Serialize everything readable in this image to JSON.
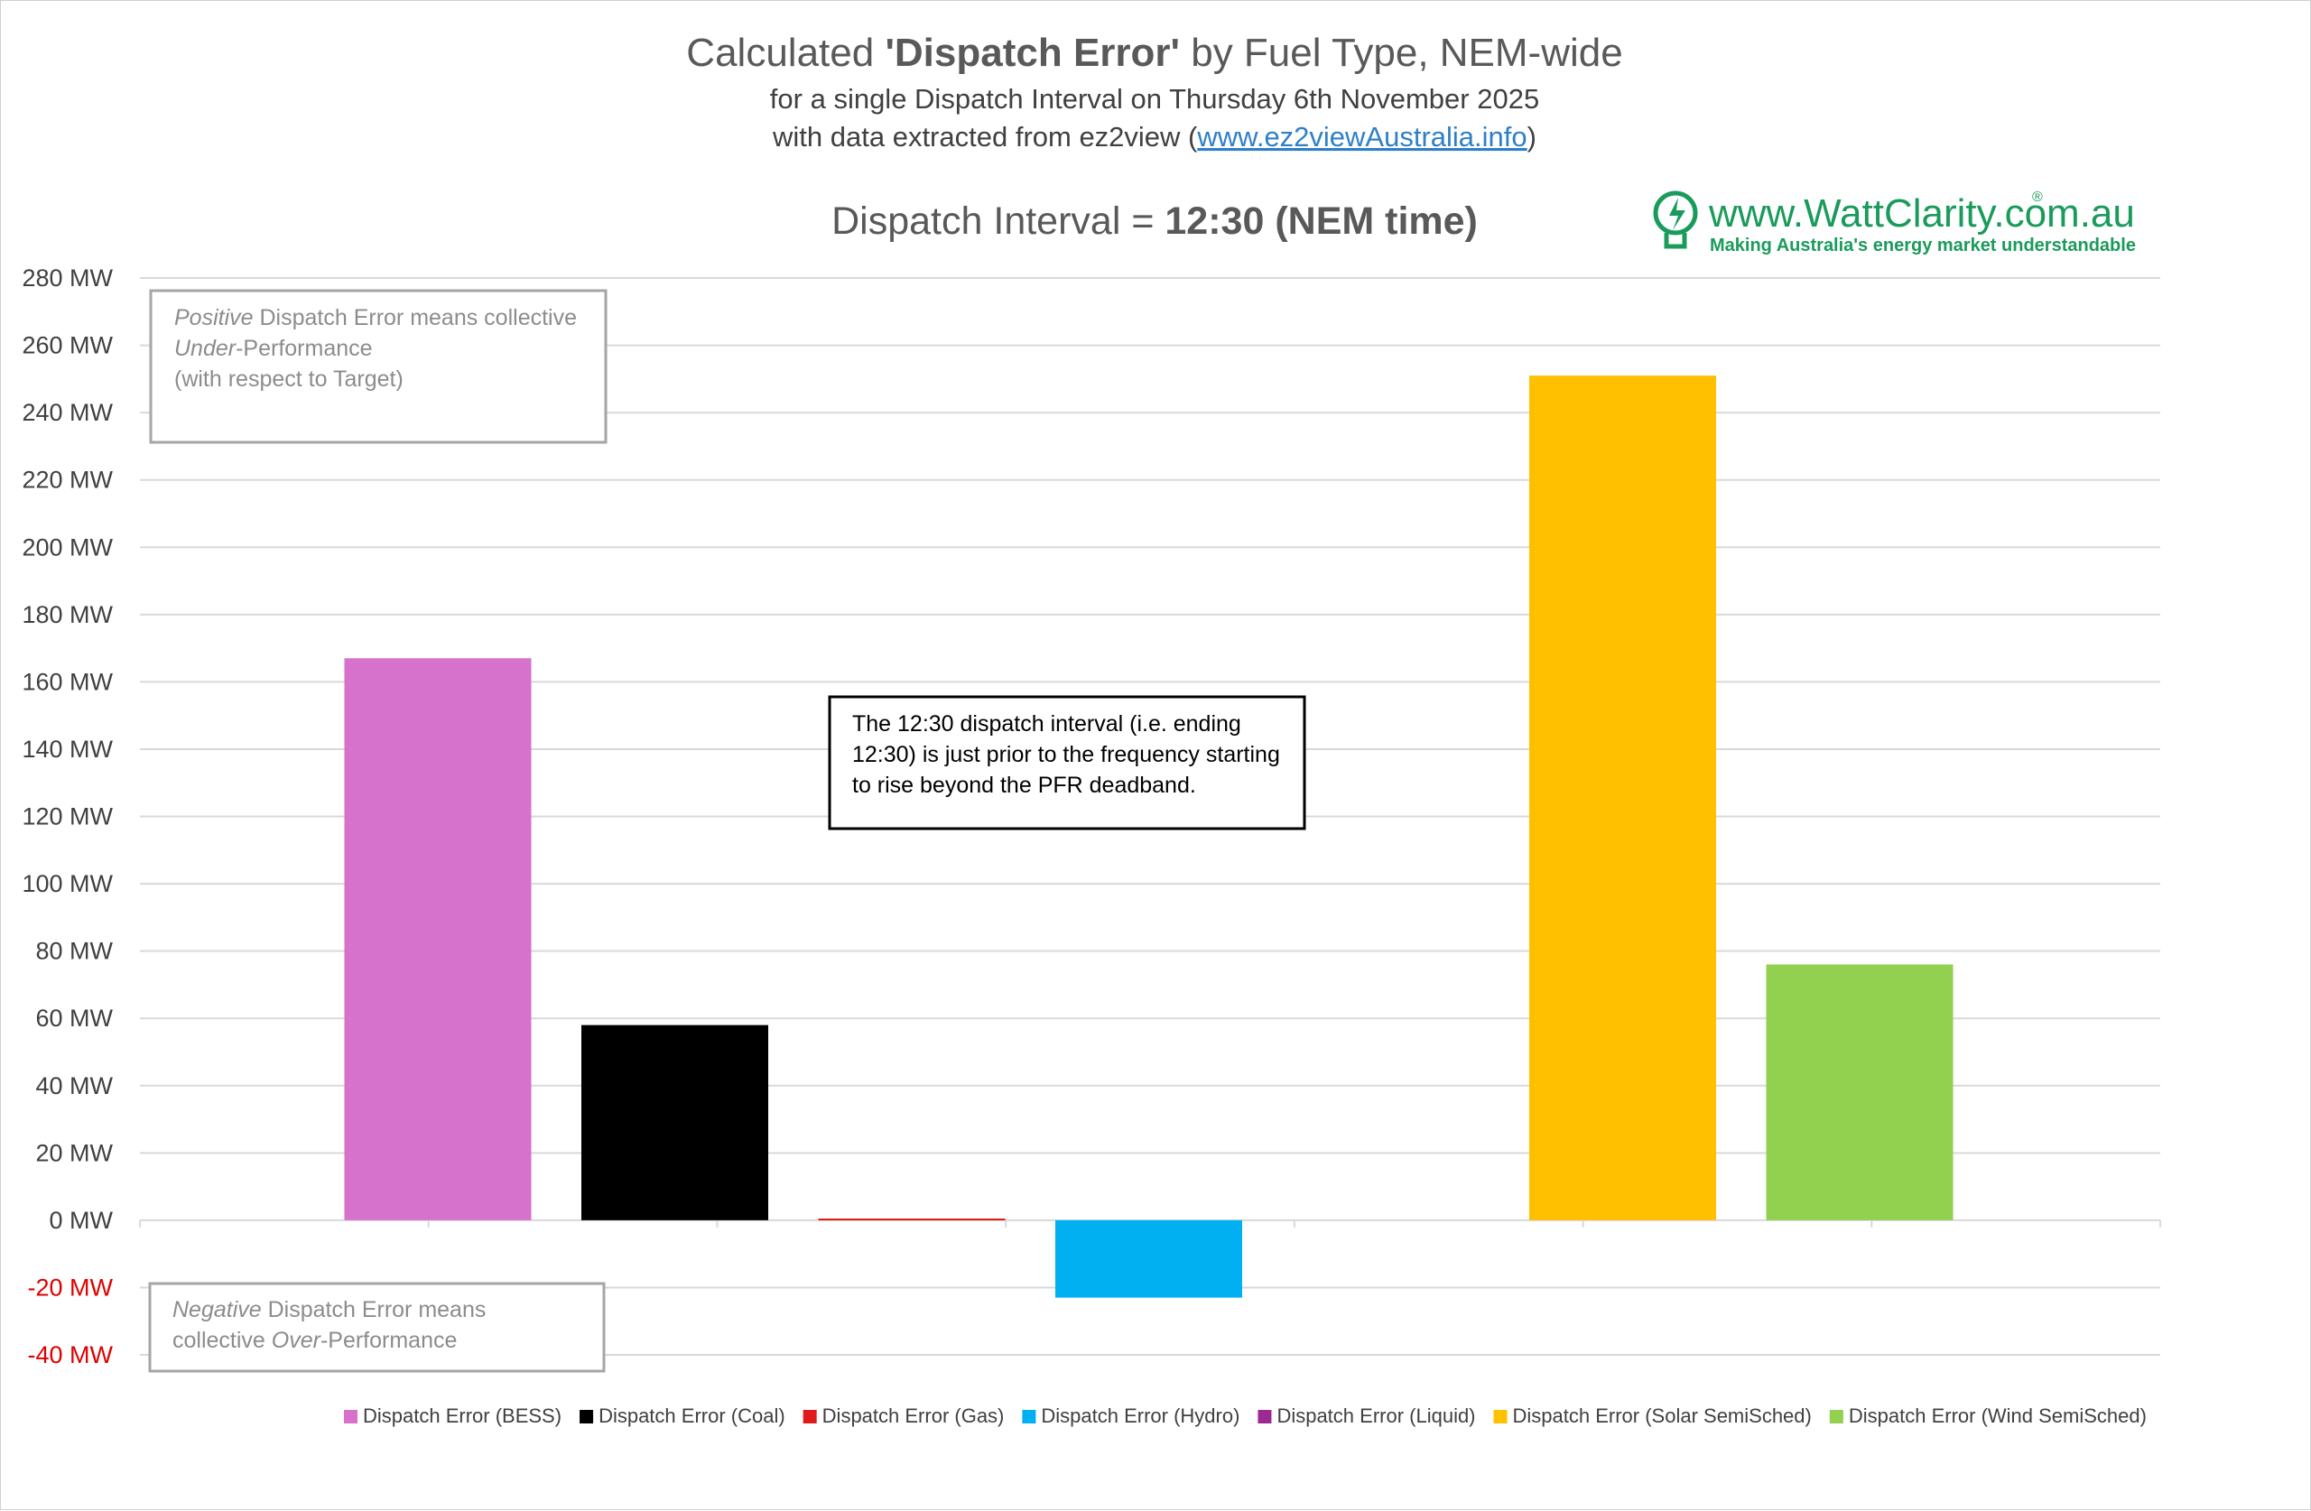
{
  "chart_data": {
    "type": "bar",
    "title_prefix": "Calculated ",
    "title_bold": "'Dispatch Error'",
    "title_suffix": " by Fuel Type, NEM-wide",
    "subtitle_line1": "for a single Dispatch Interval on Thursday 6th November 2025",
    "subtitle_line2_prefix": "with data extracted from ez2view (",
    "subtitle_line2_link": "www.ez2viewAustralia.info",
    "subtitle_line2_suffix": ")",
    "interval_prefix": "Dispatch Interval = ",
    "interval_bold": "12:30 (NEM time)",
    "categories": [
      "BESS",
      "Coal",
      "Gas",
      "Hydro",
      "Liquid",
      "Solar SemiSched",
      "Wind SemiSched"
    ],
    "series": [
      {
        "name": "Dispatch Error (BESS)",
        "value": 167,
        "color": "#d671cc"
      },
      {
        "name": "Dispatch Error (Coal)",
        "value": 58,
        "color": "#000000"
      },
      {
        "name": "Dispatch Error (Gas)",
        "value": 0.5,
        "color": "#e01a1a"
      },
      {
        "name": "Dispatch Error (Hydro)",
        "value": -23,
        "color": "#00b0f0"
      },
      {
        "name": "Dispatch Error (Liquid)",
        "value": 0,
        "color": "#9c2a93"
      },
      {
        "name": "Dispatch Error (Solar SemiSched)",
        "value": 251,
        "color": "#ffc000"
      },
      {
        "name": "Dispatch Error (Wind SemiSched)",
        "value": 76,
        "color": "#92d050"
      }
    ],
    "ylim": [
      -40,
      280
    ],
    "ytick_step": 20,
    "ytick_suffix": " MW",
    "negative_tick_color": "#e00000",
    "grid": true,
    "legend_position": "bottom",
    "annotations": {
      "positive_note": {
        "italic": "Positive",
        "line1_rest": " Dispatch Error means collective",
        "line2_italic": "Under",
        "line2_rest": "-Performance",
        "line3": "(with respect to Target)"
      },
      "negative_note": {
        "italic": "Negative",
        "line1_rest": " Dispatch Error means",
        "line2_pre": "collective ",
        "line2_italic": "Over",
        "line2_rest": "-Performance"
      },
      "callout": {
        "line1": "The 12:30 dispatch interval (i.e. ending",
        "line2": "12:30) is just prior to the frequency starting",
        "line3": "to rise beyond the PFR deadband."
      }
    }
  },
  "logo": {
    "url": "www.WattClarity.com.au",
    "registered": "®",
    "tagline": "Making Australia's energy market understandable",
    "color": "#1a9b5b"
  }
}
